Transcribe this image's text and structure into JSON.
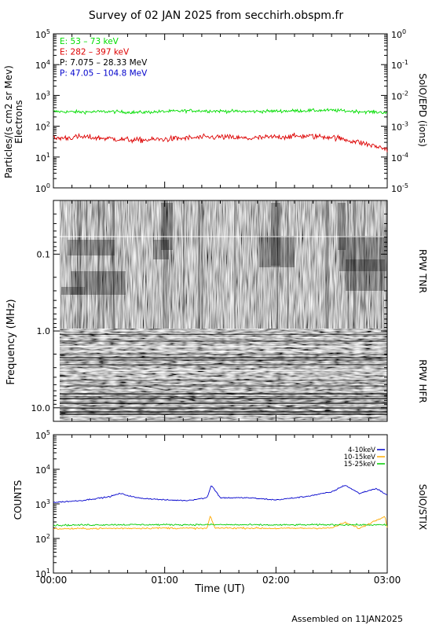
{
  "page": {
    "title": "Survey of 02 JAN 2025 from secchirh.obspm.fr",
    "footer": "Assembled on  11JAN2025"
  },
  "chart_data": [
    {
      "type": "line",
      "panel": "SolO/EPD",
      "ylabel_left_line1": "Particles/(s cm2 sr Mev)",
      "ylabel_left_line2": "Electrons",
      "ylabel_right": "SolO/EPD (ions)",
      "yscale": "log",
      "ylim": [
        1,
        100000
      ],
      "ylim_right": [
        1e-05,
        1
      ],
      "yticks_left": [
        "10^0",
        "10^1",
        "10^2",
        "10^3",
        "10^4",
        "10^5"
      ],
      "yticks_right": [
        "10^-5",
        "10^-4",
        "10^-3",
        "10^-2",
        "10^-1",
        "10^0"
      ],
      "xlim_hours": [
        0,
        3
      ],
      "legend_placement": "top-left",
      "series": [
        {
          "name": "E: 53 – 73 keV",
          "color": "#00dd00",
          "x_hours": [
            0,
            0.25,
            0.5,
            0.75,
            1.0,
            1.25,
            1.5,
            1.75,
            2.0,
            2.25,
            2.5,
            2.75,
            3.0
          ],
          "values": [
            300,
            290,
            300,
            280,
            300,
            320,
            310,
            300,
            310,
            320,
            330,
            300,
            280
          ]
        },
        {
          "name": "E: 282 – 397 keV",
          "color": "#dd0000",
          "x_hours": [
            0,
            0.25,
            0.5,
            0.75,
            1.0,
            1.25,
            1.5,
            1.75,
            2.0,
            2.25,
            2.5,
            2.75,
            3.0
          ],
          "values": [
            40,
            45,
            40,
            35,
            38,
            42,
            45,
            40,
            45,
            48,
            45,
            30,
            18
          ]
        },
        {
          "name": "P: 7.075 – 28.33 MeV",
          "color": "#000000",
          "x_hours": [],
          "values": []
        },
        {
          "name": "P: 47.05 – 104.8 MeV",
          "color": "#0000cc",
          "x_hours": [],
          "values": []
        }
      ]
    },
    {
      "type": "heatmap",
      "panel": "RPW",
      "ylabel": "Frequency (MHz)",
      "yscale": "log",
      "ylim": [
        0.02,
        15
      ],
      "yticks": [
        "0.1",
        "1.0",
        "10.0"
      ],
      "colormap": "grayscale",
      "bands": [
        {
          "name": "RPW TNR",
          "range_mhz": [
            0.02,
            1.0
          ]
        },
        {
          "name": "RPW HFR",
          "range_mhz": [
            1.0,
            15
          ]
        }
      ],
      "xlim_hours": [
        0,
        3
      ]
    },
    {
      "type": "line",
      "panel": "SolO/STIX",
      "ylabel": "COUNTS",
      "ylabel_right": "SolO/STIX",
      "yscale": "log",
      "ylim": [
        10,
        100000
      ],
      "yticks": [
        "10^1",
        "10^2",
        "10^3",
        "10^4",
        "10^5"
      ],
      "xlim_hours": [
        0,
        3
      ],
      "xticks": [
        "00:00",
        "01:00",
        "02:00",
        "03:00"
      ],
      "xlabel": "Time (UT)",
      "legend_placement": "top-right",
      "series": [
        {
          "name": "4-10keV",
          "color": "#0000cc",
          "x_hours": [
            0,
            0.25,
            0.5,
            0.6,
            0.75,
            1.0,
            1.2,
            1.38,
            1.42,
            1.5,
            1.75,
            2.0,
            2.25,
            2.5,
            2.62,
            2.75,
            2.9,
            3.0
          ],
          "values": [
            1100,
            1250,
            1600,
            2000,
            1500,
            1300,
            1250,
            1500,
            3500,
            1500,
            1500,
            1300,
            1600,
            2200,
            3500,
            2000,
            2800,
            1800
          ]
        },
        {
          "name": "10-15keV",
          "color": "#ffaa00",
          "x_hours": [
            0,
            0.5,
            1.0,
            1.38,
            1.41,
            1.45,
            1.75,
            2.0,
            2.5,
            2.62,
            2.75,
            2.98,
            3.0
          ],
          "values": [
            190,
            195,
            200,
            195,
            450,
            200,
            200,
            195,
            200,
            290,
            195,
            450,
            200
          ]
        },
        {
          "name": "15-25keV",
          "color": "#00cc00",
          "x_hours": [
            0,
            0.5,
            1.0,
            1.5,
            2.0,
            2.5,
            3.0
          ],
          "values": [
            240,
            250,
            250,
            250,
            245,
            250,
            245
          ]
        }
      ]
    }
  ]
}
